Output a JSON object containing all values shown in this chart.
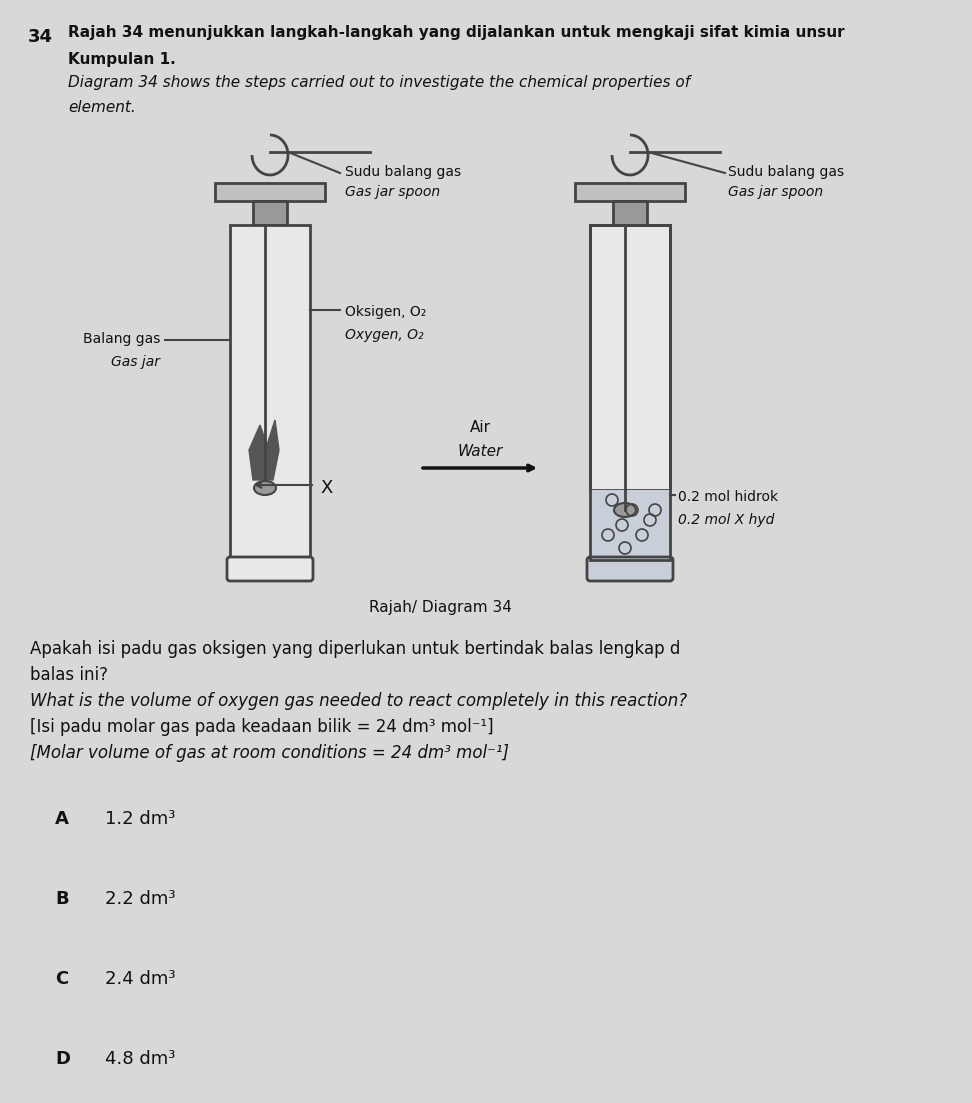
{
  "bg_color": "#d8d8d8",
  "question_number": "34",
  "line1_malay": "Rajah 34 menunjukkan langkah-langkah yang dijalankan untuk mengkaji sifat kimia unsur",
  "line2_malay": "Kumpulan 1.",
  "line3_english": "Diagram 34 shows the steps carried out to investigate the chemical properties of",
  "line4_english": "element.",
  "label_spoon1_malay": "Sudu balang gas",
  "label_spoon1_eng": "Gas jar spoon",
  "label_spoon2_malay": "Sudu balang gas",
  "label_spoon2_eng": "Gas jar spoon",
  "label_jar_malay": "Balang gas",
  "label_jar_eng": "Gas jar",
  "label_gas_malay": "Oksigen, O₂",
  "label_gas_eng": "Oxygen, O₂",
  "label_arrow_malay": "Air",
  "label_arrow_eng": "Water",
  "label_x": "X",
  "label_product_malay": "0.2 mol hidrok",
  "label_product_eng": "0.2 mol X hyd",
  "diagram_caption": "Rajah/ Diagram 34",
  "question_line1_malay": "Apakah isi padu gas oksigen yang diperlukan untuk bertindak balas lengkap d",
  "question_line2_malay": "balas ini?",
  "question_english": "What is the volume of oxygen gas needed to react completely in this reaction?",
  "molar_volume_malay": "[Isi padu molar gas pada keadaan bilik = 24 dm³ mol⁻¹]",
  "molar_volume_eng": "[Molar volume of gas at room conditions = 24 dm³ mol⁻¹]",
  "opt_A_letter": "A",
  "opt_A_val": "1.2 dm³",
  "opt_B_letter": "B",
  "opt_B_val": "2.2 dm³",
  "opt_C_letter": "C",
  "opt_C_val": "2.4 dm³",
  "opt_D_letter": "D",
  "opt_D_val": "4.8 dm³",
  "text_color": "#111111",
  "diagram_color": "#444444",
  "jar_fill": "#e8e8e8",
  "water_fill": "#c8cfd8",
  "lid_fill": "#c0c0c0",
  "block_fill": "#999999"
}
